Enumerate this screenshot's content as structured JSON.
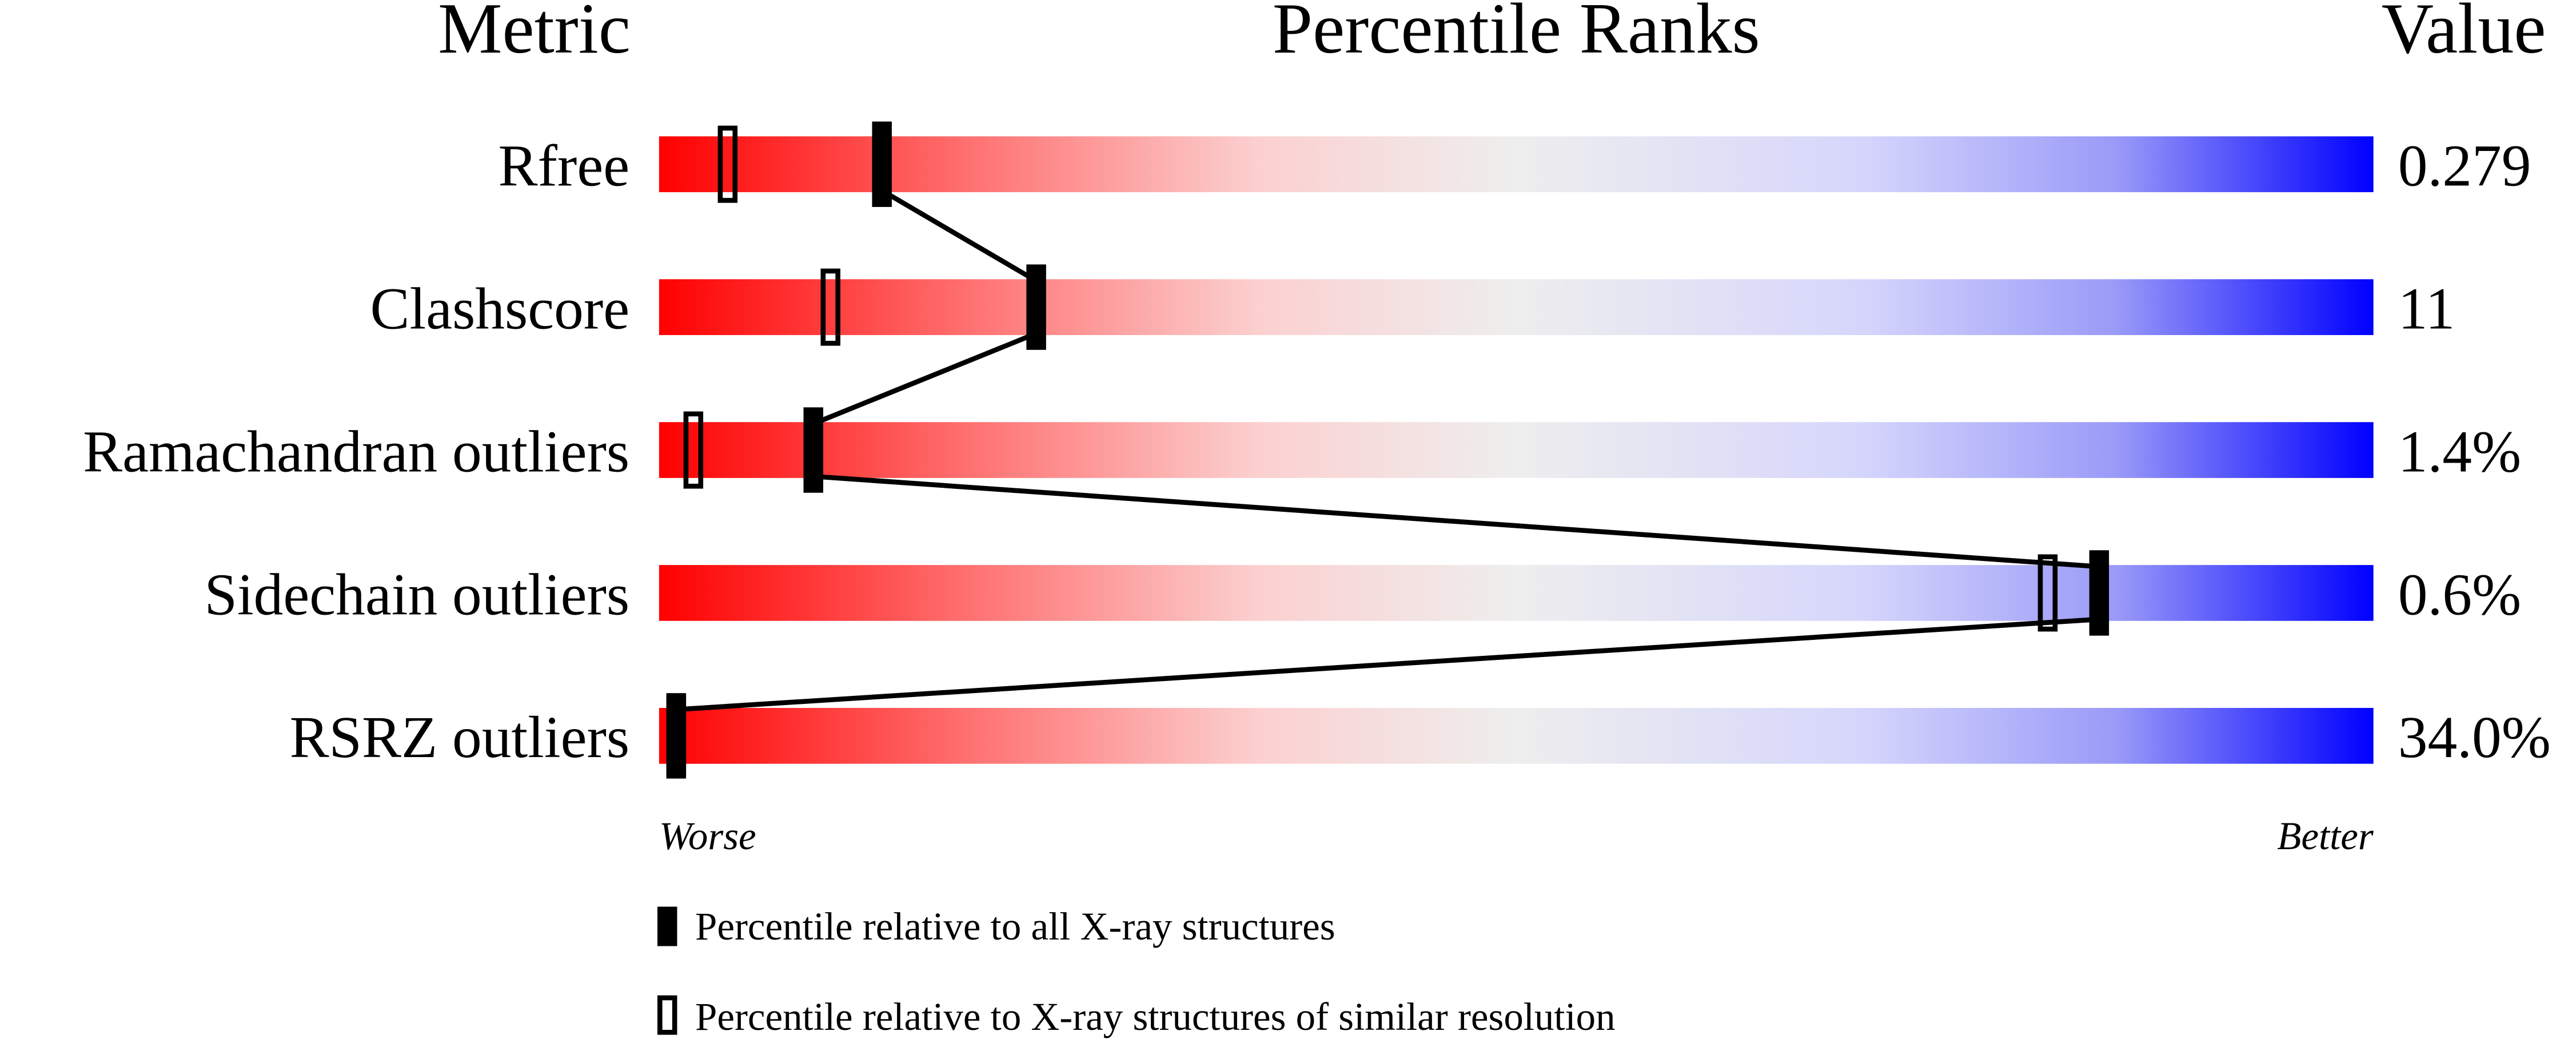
{
  "chart_data": {
    "type": "percentile-slider",
    "headers": {
      "metric": "Metric",
      "ranks": "Percentile Ranks",
      "value": "Value"
    },
    "xlim": [
      0,
      100
    ],
    "axis": {
      "left": "Worse",
      "right": "Better"
    },
    "gradient_colors": [
      "#ff0000",
      "#eeeeee",
      "#0000ff"
    ],
    "metrics": [
      {
        "name": "Rfree",
        "value": "0.279",
        "percentile_all": 13,
        "percentile_similar": 4
      },
      {
        "name": "Clashscore",
        "value": "11",
        "percentile_all": 22,
        "percentile_similar": 10
      },
      {
        "name": "Ramachandran outliers",
        "value": "1.4%",
        "percentile_all": 9,
        "percentile_similar": 2
      },
      {
        "name": "Sidechain outliers",
        "value": "0.6%",
        "percentile_all": 84,
        "percentile_similar": 81
      },
      {
        "name": "RSRZ outliers",
        "value": "34.0%",
        "percentile_all": 1,
        "percentile_similar": 1
      }
    ],
    "legend": [
      {
        "marker": "filled",
        "label": "Percentile relative to all X-ray structures"
      },
      {
        "marker": "open",
        "label": "Percentile relative to X-ray structures of similar resolution"
      }
    ]
  }
}
